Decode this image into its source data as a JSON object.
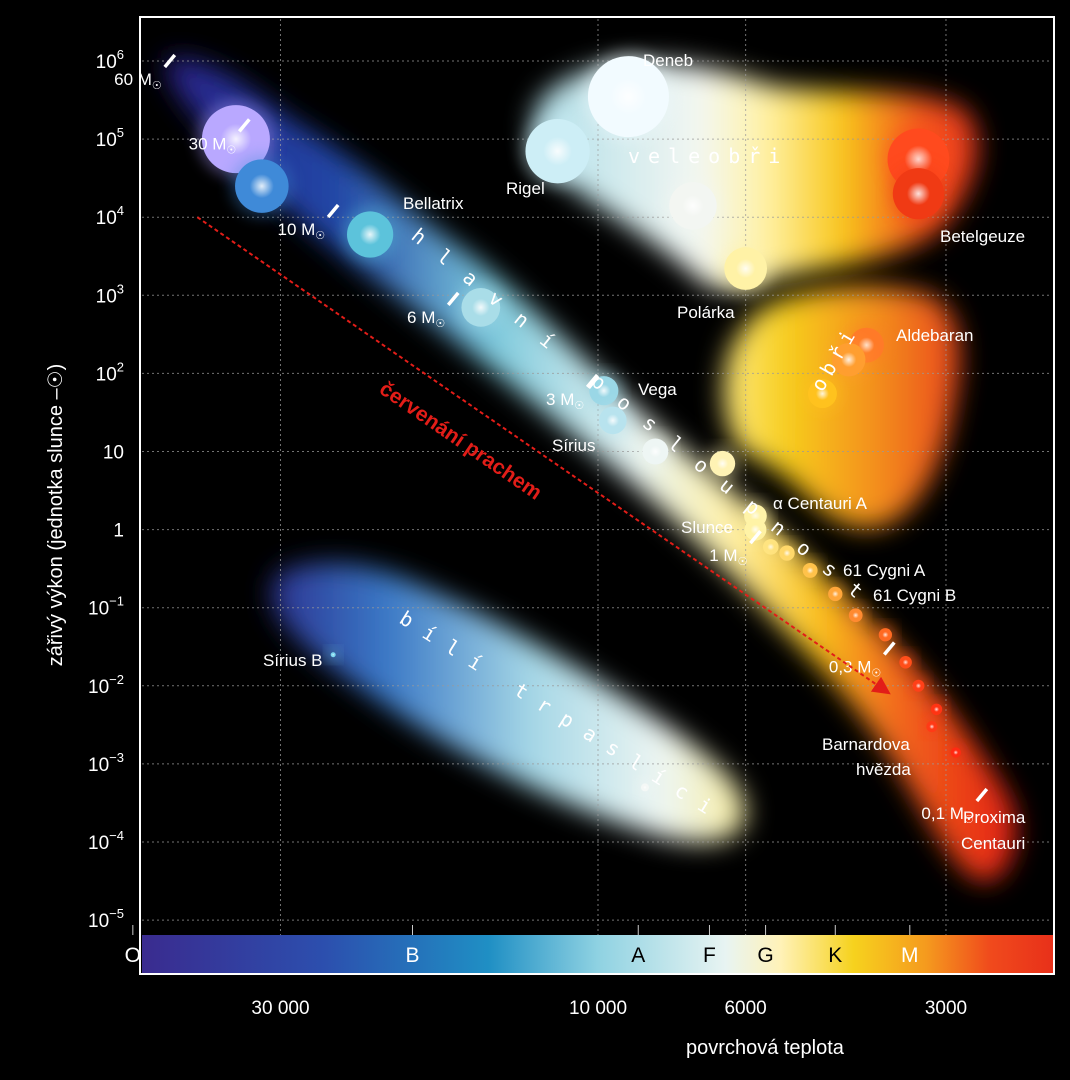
{
  "chart_data": {
    "type": "scatter",
    "ylabel": "zářivý výkon (jednotka slunce –☉)",
    "xlabel": "povrchová teplota",
    "x_scale": "log-reversed",
    "y_scale": "log",
    "ylim": [
      1e-05,
      1000000
    ],
    "grid": true,
    "y_ticks": [
      {
        "base": "10",
        "exp": "6",
        "value": 1000000
      },
      {
        "base": "10",
        "exp": "5",
        "value": 100000
      },
      {
        "base": "10",
        "exp": "4",
        "value": 10000
      },
      {
        "base": "10",
        "exp": "3",
        "value": 1000
      },
      {
        "base": "10",
        "exp": "2",
        "value": 100
      },
      {
        "base": "10",
        "exp": "",
        "value": 10
      },
      {
        "base": "1",
        "exp": "",
        "value": 1
      },
      {
        "base": "10",
        "exp": "−1",
        "value": 0.1
      },
      {
        "base": "10",
        "exp": "−2",
        "value": 0.01
      },
      {
        "base": "10",
        "exp": "−3",
        "value": 0.001
      },
      {
        "base": "10",
        "exp": "−4",
        "value": 0.0001
      },
      {
        "base": "10",
        "exp": "−5",
        "value": 1e-05
      }
    ],
    "x_ticks": [
      {
        "label": "30 000",
        "value": 30000
      },
      {
        "label": "10 000",
        "value": 10000
      },
      {
        "label": "6000",
        "value": 6000
      },
      {
        "label": "3000",
        "value": 3000
      }
    ],
    "spectral_classes": [
      {
        "letter": "O",
        "temp": 50000,
        "color": "#ffffff"
      },
      {
        "letter": "B",
        "temp": 19000,
        "color": "#ffffff"
      },
      {
        "letter": "A",
        "temp": 8700,
        "color": "#000000"
      },
      {
        "letter": "F",
        "temp": 6800,
        "color": "#000000"
      },
      {
        "letter": "G",
        "temp": 5600,
        "color": "#000000"
      },
      {
        "letter": "K",
        "temp": 4400,
        "color": "#000000"
      },
      {
        "letter": "M",
        "temp": 3400,
        "color": "#ffffff"
      }
    ],
    "stars": [
      {
        "name": "Deneb",
        "temp": 9000,
        "lum": 350000,
        "color": "#f2fbff"
      },
      {
        "name": "Rigel",
        "temp": 11500,
        "lum": 70000,
        "color": "#cdeef6"
      },
      {
        "name": "Betelgeuze",
        "temp": 3300,
        "lum": 55000,
        "color": "#ff4a1e"
      },
      {
        "name": "",
        "temp": 3300,
        "lum": 20000,
        "color": "#f03a14"
      },
      {
        "name": "",
        "temp": 7200,
        "lum": 14000,
        "color": "#f3f6f2"
      },
      {
        "name": "Polárka",
        "temp": 6000,
        "lum": 2200,
        "color": "#fff2a6"
      },
      {
        "name": "Aldebaran",
        "temp": 3950,
        "lum": 230,
        "color": "#ff7a28"
      },
      {
        "name": "",
        "temp": 4200,
        "lum": 150,
        "color": "#ff9e30"
      },
      {
        "name": "",
        "temp": 4600,
        "lum": 55,
        "color": "#ffc21e"
      },
      {
        "name": "",
        "temp": 35000,
        "lum": 100000,
        "color": "#b9a8ff"
      },
      {
        "name": "",
        "temp": 32000,
        "lum": 25000,
        "color": "#3f8ad8"
      },
      {
        "name": "Bellatrix",
        "temp": 22000,
        "lum": 6000,
        "color": "#5cc3db"
      },
      {
        "name": "",
        "temp": 15000,
        "lum": 700,
        "color": "#a9dde8"
      },
      {
        "name": "Vega",
        "temp": 9800,
        "lum": 60,
        "color": "#9ad7e6"
      },
      {
        "name": "Sírius",
        "temp": 9500,
        "lum": 25,
        "color": "#b8e3ee"
      },
      {
        "name": "",
        "temp": 8200,
        "lum": 10,
        "color": "#eef6f4"
      },
      {
        "name": "",
        "temp": 6500,
        "lum": 7,
        "color": "#fff3b4"
      },
      {
        "name": "α Centauri A",
        "temp": 5800,
        "lum": 1.5,
        "color": "#fff3a8"
      },
      {
        "name": "Slunce",
        "temp": 5800,
        "lum": 1,
        "color": "#fff3a6"
      },
      {
        "name": "",
        "temp": 5500,
        "lum": 0.6,
        "color": "#ffe480"
      },
      {
        "name": "",
        "temp": 5200,
        "lum": 0.5,
        "color": "#ffd86a"
      },
      {
        "name": "",
        "temp": 4800,
        "lum": 0.3,
        "color": "#ffc24a"
      },
      {
        "name": "61 Cygni A",
        "temp": 4400,
        "lum": 0.15,
        "color": "#ffa63a"
      },
      {
        "name": "61 Cygni B",
        "temp": 4100,
        "lum": 0.08,
        "color": "#ff8a30"
      },
      {
        "name": "",
        "temp": 3700,
        "lum": 0.045,
        "color": "#ff6a22"
      },
      {
        "name": "",
        "temp": 3450,
        "lum": 0.02,
        "color": "#ff4e1a"
      },
      {
        "name": "",
        "temp": 3300,
        "lum": 0.01,
        "color": "#ff4018"
      },
      {
        "name": "",
        "temp": 3100,
        "lum": 0.005,
        "color": "#ff3414"
      },
      {
        "name": "Barnardova hvězda",
        "temp": 3150,
        "lum": 0.003,
        "color": "#ff3a16"
      },
      {
        "name": "",
        "temp": 2900,
        "lum": 0.0014,
        "color": "#ff2a12"
      },
      {
        "name": "Sírius B",
        "temp": 25000,
        "lum": 0.025,
        "color": "#7fd8f0"
      },
      {
        "name": "",
        "temp": 8500,
        "lum": 0.0005,
        "color": "#f4f8f6"
      }
    ],
    "mass_marks": [
      {
        "label": "60 M",
        "temp": 44000,
        "lum": 1000000
      },
      {
        "label": "30 M",
        "temp": 34000,
        "lum": 150000
      },
      {
        "label": "10 M",
        "temp": 25000,
        "lum": 12000
      },
      {
        "label": "6 M",
        "temp": 16500,
        "lum": 900
      },
      {
        "label": "3 M",
        "temp": 10200,
        "lum": 80
      },
      {
        "label": "1 M",
        "temp": 5800,
        "lum": 0.8
      },
      {
        "label": "0,3 M",
        "temp": 3650,
        "lum": 0.03
      },
      {
        "label": "0,1 M",
        "temp": 2650,
        "lum": 0.0004
      }
    ],
    "star_labels": [
      {
        "text": "Deneb"
      },
      {
        "text": "Rigel"
      },
      {
        "text": "Betelgeuze"
      },
      {
        "text": "Polárka"
      },
      {
        "text": "Aldebaran"
      },
      {
        "text": "Bellatrix"
      },
      {
        "text": "Vega"
      },
      {
        "text": "Sírius"
      },
      {
        "text": "α Centauri A"
      },
      {
        "text": "Slunce"
      },
      {
        "text": "61 Cygni A"
      },
      {
        "text": "61 Cygni B"
      },
      {
        "text": "Barnardova"
      },
      {
        "text": "hvězda"
      },
      {
        "text": "Proxima"
      },
      {
        "text": "Centauri"
      },
      {
        "text": "Sírius B"
      }
    ],
    "group_labels": {
      "supergiants": "veleobři",
      "giants": "obři",
      "main_sequence": "hlavní posloupnost",
      "white_dwarfs": "bílí trpaslíci"
    },
    "annotation": {
      "text": "červenání prachem",
      "color": "#e21d18",
      "arrow_from": {
        "temp": 40000,
        "lum": 10000
      },
      "arrow_to": {
        "temp": 3650,
        "lum": 0.008
      }
    },
    "colors": {
      "background": "#000000",
      "frame": "#ffffff",
      "grid": "#9a9a9a",
      "reddening": "#e21d18"
    }
  }
}
